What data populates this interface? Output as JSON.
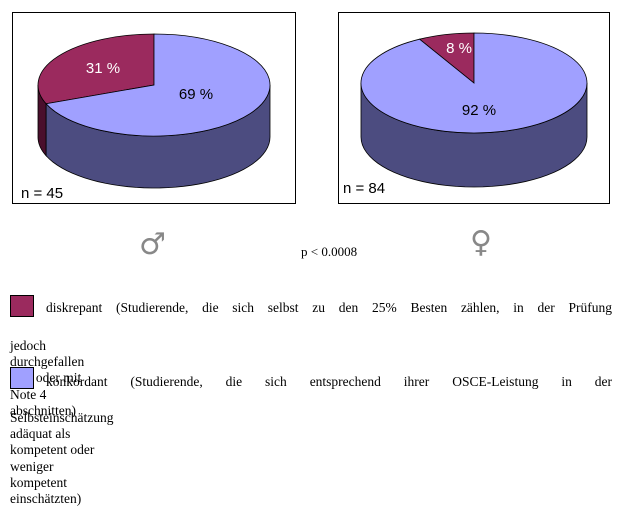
{
  "chart_data": [
    {
      "type": "pie",
      "group_symbol": "♂",
      "n_label": "n = 45",
      "slices": [
        {
          "label": "31 %",
          "value": 31,
          "category": "diskrepant",
          "color": "#9b2a5e"
        },
        {
          "label": "69 %",
          "value": 69,
          "category": "konkordant",
          "color": "#a0a0ff"
        }
      ]
    },
    {
      "type": "pie",
      "group_symbol": "♀",
      "n_label": "n = 84",
      "slices": [
        {
          "label": "8 %",
          "value": 8,
          "category": "diskrepant",
          "color": "#9b2a5e"
        },
        {
          "label": "92 %",
          "value": 92,
          "category": "konkordant",
          "color": "#a0a0ff"
        }
      ]
    }
  ],
  "p_value": "p < 0.0008",
  "legend": {
    "diskrepant": {
      "line1": "diskrepant (Studierende, die sich selbst zu den 25% Besten zählen, in der Prüfung",
      "line2": "jedoch durchgefallen sind oder mit Note 4 abschnitten)",
      "color": "#9b2a5e"
    },
    "konkordant": {
      "line1": "konkordant (Studierende, die sich entsprechend ihrer OSCE-Leistung in der",
      "line2": "Selbsteinschätzung adäquat als kompetent oder weniger kompetent einschätzten)",
      "color": "#a0a0ff"
    }
  },
  "colors": {
    "diskrepant_side": "#4a0f2c",
    "konkordant_side": "#4c4c80"
  }
}
